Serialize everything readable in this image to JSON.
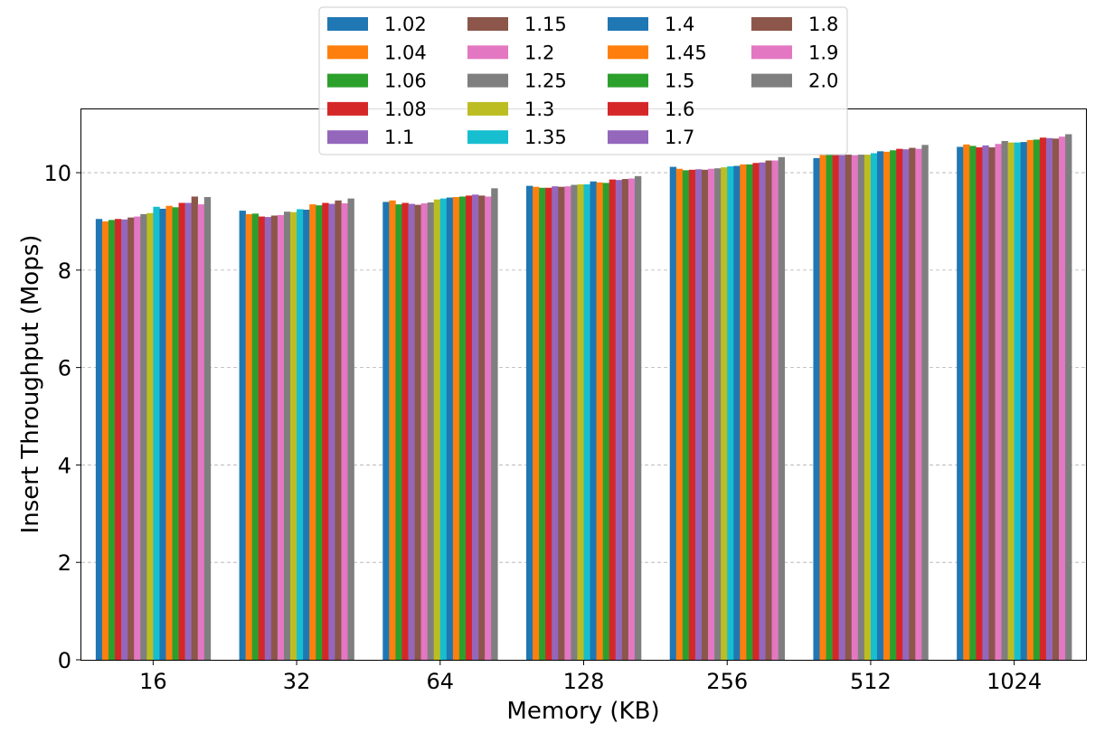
{
  "chart_data": {
    "type": "bar",
    "title": "",
    "xlabel": "Memory (KB)",
    "ylabel": "Insert Throughput (Mops)",
    "ylim": [
      0,
      11.3
    ],
    "yticks": [
      "0",
      "2",
      "4",
      "6",
      "8",
      "10"
    ],
    "grid": "y-dashed",
    "legend_placement": "top-center",
    "legend_columns": 4,
    "categories": [
      "16",
      "32",
      "64",
      "128",
      "256",
      "512",
      "1024"
    ],
    "series": [
      {
        "name": "1.02",
        "color": "#1f77b4",
        "values": [
          9.05,
          9.22,
          9.4,
          9.73,
          10.12,
          10.3,
          10.53
        ]
      },
      {
        "name": "1.04",
        "color": "#ff7f0e",
        "values": [
          9.0,
          9.15,
          9.43,
          9.71,
          10.08,
          10.36,
          10.58
        ]
      },
      {
        "name": "1.06",
        "color": "#2ca02c",
        "values": [
          9.03,
          9.16,
          9.35,
          9.69,
          10.05,
          10.37,
          10.55
        ]
      },
      {
        "name": "1.08",
        "color": "#d62728",
        "values": [
          9.05,
          9.1,
          9.38,
          9.69,
          10.06,
          10.36,
          10.52
        ]
      },
      {
        "name": "1.1",
        "color": "#9467bd",
        "values": [
          9.04,
          9.09,
          9.36,
          9.72,
          10.07,
          10.36,
          10.56
        ]
      },
      {
        "name": "1.15",
        "color": "#8c564b",
        "values": [
          9.08,
          9.12,
          9.34,
          9.71,
          10.06,
          10.37,
          10.52
        ]
      },
      {
        "name": "1.2",
        "color": "#e377c2",
        "values": [
          9.1,
          9.13,
          9.37,
          9.72,
          10.08,
          10.36,
          10.59
        ]
      },
      {
        "name": "1.25",
        "color": "#7f7f7f",
        "values": [
          9.15,
          9.2,
          9.39,
          9.75,
          10.09,
          10.37,
          10.65
        ]
      },
      {
        "name": "1.3",
        "color": "#bcbd22",
        "values": [
          9.17,
          9.19,
          9.45,
          9.76,
          10.11,
          10.37,
          10.62
        ]
      },
      {
        "name": "1.35",
        "color": "#17becf",
        "values": [
          9.3,
          9.25,
          9.47,
          9.76,
          10.13,
          10.4,
          10.62
        ]
      },
      {
        "name": "1.4",
        "color": "#1f77b4",
        "values": [
          9.26,
          9.24,
          9.49,
          9.82,
          10.14,
          10.44,
          10.63
        ]
      },
      {
        "name": "1.45",
        "color": "#ff7f0e",
        "values": [
          9.32,
          9.35,
          9.5,
          9.8,
          10.17,
          10.43,
          10.67
        ]
      },
      {
        "name": "1.5",
        "color": "#2ca02c",
        "values": [
          9.29,
          9.33,
          9.51,
          9.79,
          10.17,
          10.46,
          10.68
        ]
      },
      {
        "name": "1.6",
        "color": "#d62728",
        "values": [
          9.38,
          9.38,
          9.53,
          9.86,
          10.2,
          10.49,
          10.72
        ]
      },
      {
        "name": "1.7",
        "color": "#9467bd",
        "values": [
          9.38,
          9.36,
          9.55,
          9.85,
          10.21,
          10.48,
          10.71
        ]
      },
      {
        "name": "1.8",
        "color": "#8c564b",
        "values": [
          9.51,
          9.43,
          9.53,
          9.87,
          10.25,
          10.51,
          10.7
        ]
      },
      {
        "name": "1.9",
        "color": "#e377c2",
        "values": [
          9.35,
          9.37,
          9.51,
          9.88,
          10.25,
          10.49,
          10.74
        ]
      },
      {
        "name": "2.0",
        "color": "#7f7f7f",
        "values": [
          9.5,
          9.47,
          9.68,
          9.93,
          10.32,
          10.57,
          10.79
        ]
      }
    ]
  }
}
